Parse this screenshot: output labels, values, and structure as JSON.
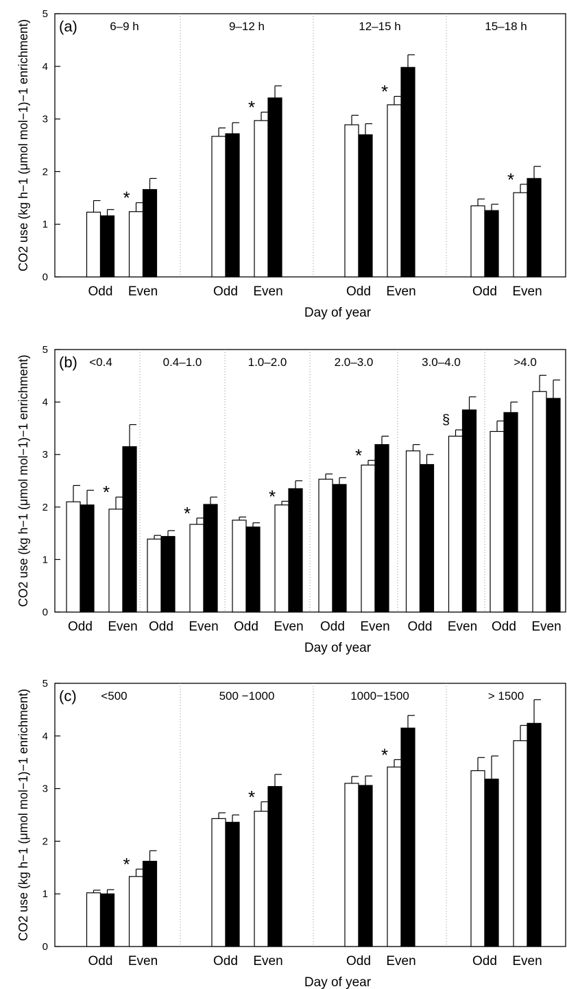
{
  "chart_data": [
    {
      "panel": "(a)",
      "type": "bar",
      "xlabel": "Day of year",
      "ylabel": "CO2 use (kg h−1 (μmol mol−1)−1 enrichment)",
      "ylim": [
        0,
        5
      ],
      "yticks": [
        0,
        1,
        2,
        3,
        4,
        5
      ],
      "categories": [
        "Odd",
        "Even"
      ],
      "groups": [
        {
          "label": "6–9 h",
          "bars": {
            "Odd": [
              {
                "value": 1.23,
                "err": 0.22
              },
              {
                "value": 1.16,
                "err": 0.12
              }
            ],
            "Even": [
              {
                "value": 1.24,
                "err": 0.17
              },
              {
                "value": 1.66,
                "err": 0.21
              }
            ]
          },
          "marker": "*"
        },
        {
          "label": "9–12 h",
          "bars": {
            "Odd": [
              {
                "value": 2.67,
                "err": 0.16
              },
              {
                "value": 2.72,
                "err": 0.21
              }
            ],
            "Even": [
              {
                "value": 2.97,
                "err": 0.16
              },
              {
                "value": 3.4,
                "err": 0.23
              }
            ]
          },
          "marker": "*"
        },
        {
          "label": "12–15 h",
          "bars": {
            "Odd": [
              {
                "value": 2.89,
                "err": 0.18
              },
              {
                "value": 2.7,
                "err": 0.21
              }
            ],
            "Even": [
              {
                "value": 3.27,
                "err": 0.16
              },
              {
                "value": 3.98,
                "err": 0.24
              }
            ]
          },
          "marker": "*"
        },
        {
          "label": "15–18 h",
          "bars": {
            "Odd": [
              {
                "value": 1.35,
                "err": 0.13
              },
              {
                "value": 1.26,
                "err": 0.12
              }
            ],
            "Even": [
              {
                "value": 1.6,
                "err": 0.16
              },
              {
                "value": 1.87,
                "err": 0.23
              }
            ]
          },
          "marker": "*"
        }
      ],
      "grid": false,
      "fill_colors": [
        "#ffffff",
        "#000000"
      ]
    },
    {
      "panel": "(b)",
      "type": "bar",
      "xlabel": "Day of year",
      "ylabel": "CO2 use (kg h−1 (μmol mol−1)−1 enrichment)",
      "ylim": [
        0,
        5
      ],
      "yticks": [
        0,
        1,
        2,
        3,
        4,
        5
      ],
      "categories": [
        "Odd",
        "Even"
      ],
      "groups": [
        {
          "label": "<0.4",
          "bars": {
            "Odd": [
              {
                "value": 2.1,
                "err": 0.31
              },
              {
                "value": 2.04,
                "err": 0.28
              }
            ],
            "Even": [
              {
                "value": 1.96,
                "err": 0.23
              },
              {
                "value": 3.15,
                "err": 0.42
              }
            ]
          },
          "marker": "*"
        },
        {
          "label": "0.4–1.0",
          "bars": {
            "Odd": [
              {
                "value": 1.39,
                "err": 0.07
              },
              {
                "value": 1.44,
                "err": 0.11
              }
            ],
            "Even": [
              {
                "value": 1.67,
                "err": 0.12
              },
              {
                "value": 2.05,
                "err": 0.14
              }
            ]
          },
          "marker": "*"
        },
        {
          "label": "1.0–2.0",
          "bars": {
            "Odd": [
              {
                "value": 1.75,
                "err": 0.06
              },
              {
                "value": 1.62,
                "err": 0.08
              }
            ],
            "Even": [
              {
                "value": 2.04,
                "err": 0.07
              },
              {
                "value": 2.35,
                "err": 0.15
              }
            ]
          },
          "marker": "*"
        },
        {
          "label": "2.0–3.0",
          "bars": {
            "Odd": [
              {
                "value": 2.53,
                "err": 0.1
              },
              {
                "value": 2.43,
                "err": 0.13
              }
            ],
            "Even": [
              {
                "value": 2.8,
                "err": 0.09
              },
              {
                "value": 3.19,
                "err": 0.16
              }
            ]
          },
          "marker": "*"
        },
        {
          "label": "3.0–4.0",
          "bars": {
            "Odd": [
              {
                "value": 3.07,
                "err": 0.12
              },
              {
                "value": 2.81,
                "err": 0.19
              }
            ],
            "Even": [
              {
                "value": 3.35,
                "err": 0.12
              },
              {
                "value": 3.85,
                "err": 0.25
              }
            ]
          },
          "marker": "§"
        },
        {
          "label": ">4.0",
          "bars": {
            "Odd": [
              {
                "value": 3.44,
                "err": 0.2
              },
              {
                "value": 3.8,
                "err": 0.2
              }
            ],
            "Even": [
              {
                "value": 4.2,
                "err": 0.31
              },
              {
                "value": 4.07,
                "err": 0.35
              }
            ]
          },
          "marker": ""
        }
      ],
      "grid": false,
      "fill_colors": [
        "#ffffff",
        "#000000"
      ]
    },
    {
      "panel": "(c)",
      "type": "bar",
      "xlabel": "Day of year",
      "ylabel": "CO2 use (kg h−1 (μmol mol−1)−1 enrichment)",
      "ylim": [
        0,
        5
      ],
      "yticks": [
        0,
        1,
        2,
        3,
        4,
        5
      ],
      "categories": [
        "Odd",
        "Even"
      ],
      "groups": [
        {
          "label": "<500",
          "bars": {
            "Odd": [
              {
                "value": 1.02,
                "err": 0.05
              },
              {
                "value": 1.0,
                "err": 0.08
              }
            ],
            "Even": [
              {
                "value": 1.33,
                "err": 0.14
              },
              {
                "value": 1.62,
                "err": 0.2
              }
            ]
          },
          "marker": "*"
        },
        {
          "label": "500 −1000",
          "bars": {
            "Odd": [
              {
                "value": 2.43,
                "err": 0.11
              },
              {
                "value": 2.36,
                "err": 0.14
              }
            ],
            "Even": [
              {
                "value": 2.57,
                "err": 0.18
              },
              {
                "value": 3.04,
                "err": 0.23
              }
            ]
          },
          "marker": "*"
        },
        {
          "label": "1000−1500",
          "bars": {
            "Odd": [
              {
                "value": 3.1,
                "err": 0.13
              },
              {
                "value": 3.06,
                "err": 0.18
              }
            ],
            "Even": [
              {
                "value": 3.41,
                "err": 0.14
              },
              {
                "value": 4.15,
                "err": 0.24
              }
            ]
          },
          "marker": "*"
        },
        {
          "label": "> 1500",
          "bars": {
            "Odd": [
              {
                "value": 3.34,
                "err": 0.25
              },
              {
                "value": 3.18,
                "err": 0.44
              }
            ],
            "Even": [
              {
                "value": 3.91,
                "err": 0.29
              },
              {
                "value": 4.24,
                "err": 0.45
              }
            ]
          },
          "marker": ""
        }
      ],
      "grid": false,
      "fill_colors": [
        "#ffffff",
        "#000000"
      ]
    }
  ]
}
